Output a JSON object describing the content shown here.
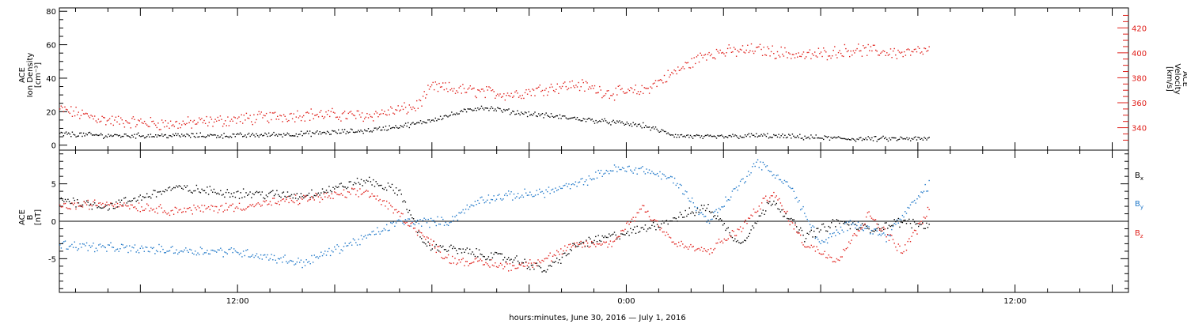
{
  "chart_data": {
    "type": "scatter",
    "xlabel": "hours:minutes, June 30, 2016 — July  1, 2016",
    "x_range": [
      "2016-06-30T06:30",
      "2016-07-01T15:30"
    ],
    "x_ticks": [
      {
        "time": "2016-06-30T12:00",
        "label": "12:00"
      },
      {
        "time": "2016-07-01T00:00",
        "label": "0:00"
      },
      {
        "time": "2016-07-01T12:00",
        "label": "12:00"
      }
    ],
    "panels": [
      {
        "name": "plasma",
        "left_axis": {
          "label_lines": [
            "ACE",
            "Ion Density",
            "[cm⁻³]"
          ],
          "ylim": [
            -3,
            82
          ],
          "ticks": [
            0,
            20,
            40,
            60,
            80
          ]
        },
        "right_axis": {
          "label_lines": [
            "ACE",
            "Velocity",
            "[km/s]"
          ],
          "ylim": [
            322,
            436
          ],
          "ticks": [
            340,
            360,
            380,
            400,
            420
          ],
          "color": "#e0201b"
        },
        "series": [
          {
            "key": "density",
            "color": "#000000",
            "axis": "left",
            "values": [
              [
                "2016-06-30T06:30",
                7
              ],
              [
                "2016-06-30T08:00",
                6
              ],
              [
                "2016-06-30T10:00",
                6
              ],
              [
                "2016-06-30T12:00",
                6
              ],
              [
                "2016-06-30T14:00",
                7
              ],
              [
                "2016-06-30T16:00",
                9
              ],
              [
                "2016-06-30T17:30",
                13
              ],
              [
                "2016-06-30T18:30",
                18
              ],
              [
                "2016-06-30T19:30",
                23
              ],
              [
                "2016-06-30T20:30",
                20
              ],
              [
                "2016-06-30T21:30",
                18
              ],
              [
                "2016-06-30T22:30",
                16
              ],
              [
                "2016-06-30T23:30",
                14
              ],
              [
                "2016-07-01T00:30",
                12
              ],
              [
                "2016-07-01T01:30",
                6
              ],
              [
                "2016-07-01T02:30",
                5
              ],
              [
                "2016-07-01T04:00",
                6
              ],
              [
                "2016-07-01T05:30",
                5
              ],
              [
                "2016-07-01T07:00",
                4
              ],
              [
                "2016-07-01T08:30",
                4
              ],
              [
                "2016-07-01T09:20",
                4
              ]
            ]
          },
          {
            "key": "velocity",
            "color": "#e0201b",
            "axis": "right",
            "values": [
              [
                "2016-06-30T06:30",
                355
              ],
              [
                "2016-06-30T08:00",
                346
              ],
              [
                "2016-06-30T10:00",
                343
              ],
              [
                "2016-06-30T12:00",
                347
              ],
              [
                "2016-06-30T14:00",
                351
              ],
              [
                "2016-06-30T16:00",
                350
              ],
              [
                "2016-06-30T17:30",
                357
              ],
              [
                "2016-06-30T18:00",
                373
              ],
              [
                "2016-06-30T19:30",
                369
              ],
              [
                "2016-06-30T20:30",
                367
              ],
              [
                "2016-06-30T21:30",
                372
              ],
              [
                "2016-06-30T22:30",
                375
              ],
              [
                "2016-06-30T23:30",
                368
              ],
              [
                "2016-07-01T00:30",
                370
              ],
              [
                "2016-07-01T01:30",
                385
              ],
              [
                "2016-07-01T02:30",
                400
              ],
              [
                "2016-07-01T04:00",
                403
              ],
              [
                "2016-07-01T05:30",
                398
              ],
              [
                "2016-07-01T07:00",
                403
              ],
              [
                "2016-07-01T08:30",
                400
              ],
              [
                "2016-07-01T09:20",
                402
              ]
            ]
          }
        ]
      },
      {
        "name": "magnetic-field",
        "left_axis": {
          "label_lines": [
            "ACE",
            "B",
            "[nT]"
          ],
          "ylim": [
            -9.5,
            9.5
          ],
          "ticks": [
            -5,
            0,
            5
          ]
        },
        "legend_position": "right",
        "zero_line": true,
        "series": [
          {
            "key": "bx",
            "label": "Bx",
            "color": "#000000",
            "values": [
              [
                "2016-06-30T06:30",
                3
              ],
              [
                "2016-06-30T08:00",
                2
              ],
              [
                "2016-06-30T10:00",
                4.5
              ],
              [
                "2016-06-30T12:00",
                3.8
              ],
              [
                "2016-06-30T14:00",
                3.5
              ],
              [
                "2016-06-30T16:00",
                5.5
              ],
              [
                "2016-06-30T17:00",
                4
              ],
              [
                "2016-06-30T17:45",
                -3
              ],
              [
                "2016-06-30T19:00",
                -4
              ],
              [
                "2016-06-30T20:30",
                -5
              ],
              [
                "2016-06-30T21:30",
                -6.5
              ],
              [
                "2016-06-30T22:30",
                -3
              ],
              [
                "2016-06-30T23:30",
                -2
              ],
              [
                "2016-07-01T00:30",
                -1
              ],
              [
                "2016-07-01T01:30",
                0.5
              ],
              [
                "2016-07-01T02:30",
                2
              ],
              [
                "2016-07-01T03:30",
                -3
              ],
              [
                "2016-07-01T04:30",
                3
              ],
              [
                "2016-07-01T05:30",
                -2
              ],
              [
                "2016-07-01T06:30",
                0
              ],
              [
                "2016-07-01T07:30",
                -1
              ],
              [
                "2016-07-01T08:30",
                0
              ],
              [
                "2016-07-01T09:20",
                -0.5
              ]
            ]
          },
          {
            "key": "by",
            "label": "By",
            "color": "#1f77c8",
            "values": [
              [
                "2016-06-30T06:30",
                -3
              ],
              [
                "2016-06-30T08:00",
                -3.5
              ],
              [
                "2016-06-30T10:00",
                -3.8
              ],
              [
                "2016-06-30T12:00",
                -4
              ],
              [
                "2016-06-30T14:00",
                -5.5
              ],
              [
                "2016-06-30T16:00",
                -2
              ],
              [
                "2016-06-30T17:00",
                0
              ],
              [
                "2016-06-30T18:30",
                0
              ],
              [
                "2016-06-30T19:30",
                3
              ],
              [
                "2016-06-30T20:30",
                3.5
              ],
              [
                "2016-06-30T21:30",
                4
              ],
              [
                "2016-06-30T22:30",
                5
              ],
              [
                "2016-06-30T23:30",
                7
              ],
              [
                "2016-07-01T00:30",
                7
              ],
              [
                "2016-07-01T01:30",
                5.5
              ],
              [
                "2016-07-01T02:30",
                0
              ],
              [
                "2016-07-01T03:30",
                5
              ],
              [
                "2016-07-01T04:00",
                8
              ],
              [
                "2016-07-01T05:00",
                5
              ],
              [
                "2016-07-01T06:00",
                -3
              ],
              [
                "2016-07-01T07:00",
                0
              ],
              [
                "2016-07-01T08:00",
                -2
              ],
              [
                "2016-07-01T09:20",
                5
              ]
            ]
          },
          {
            "key": "bz",
            "label": "Bz",
            "color": "#e0201b",
            "values": [
              [
                "2016-06-30T06:30",
                2
              ],
              [
                "2016-06-30T08:00",
                2.5
              ],
              [
                "2016-06-30T10:00",
                1.5
              ],
              [
                "2016-06-30T12:00",
                2
              ],
              [
                "2016-06-30T14:00",
                3
              ],
              [
                "2016-06-30T16:00",
                4
              ],
              [
                "2016-06-30T17:00",
                1
              ],
              [
                "2016-06-30T18:30",
                -5
              ],
              [
                "2016-06-30T19:30",
                -5.5
              ],
              [
                "2016-06-30T20:30",
                -6
              ],
              [
                "2016-06-30T21:30",
                -5
              ],
              [
                "2016-06-30T22:30",
                -3
              ],
              [
                "2016-06-30T23:30",
                -3
              ],
              [
                "2016-07-01T00:30",
                2
              ],
              [
                "2016-07-01T01:30",
                -3
              ],
              [
                "2016-07-01T02:30",
                -4
              ],
              [
                "2016-07-01T03:30",
                -1
              ],
              [
                "2016-07-01T04:30",
                4
              ],
              [
                "2016-07-01T05:30",
                -3
              ],
              [
                "2016-07-01T06:30",
                -5
              ],
              [
                "2016-07-01T07:30",
                1
              ],
              [
                "2016-07-01T08:30",
                -4
              ],
              [
                "2016-07-01T09:20",
                1.5
              ]
            ]
          }
        ]
      }
    ]
  }
}
